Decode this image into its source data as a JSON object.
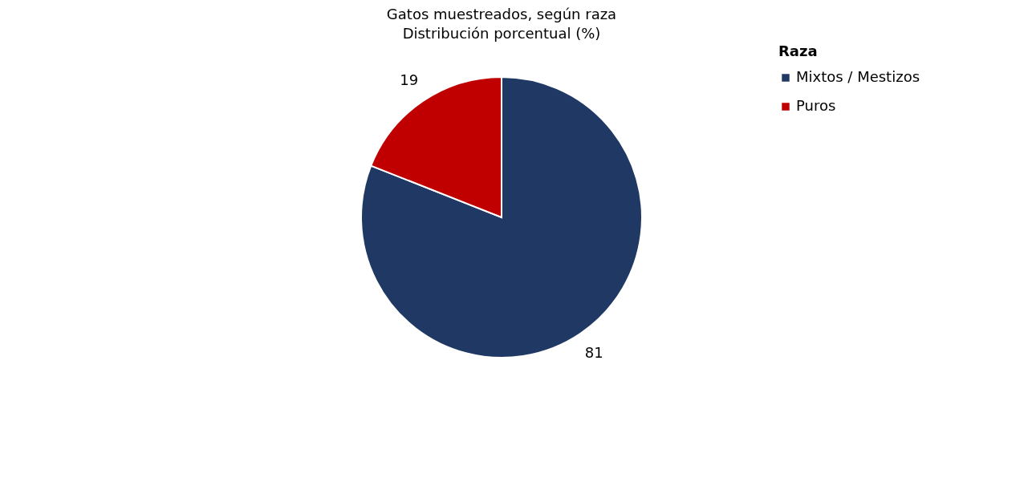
{
  "chart_data": {
    "type": "pie",
    "title": "Gatos muestreados, según raza",
    "subtitle": "Distribución porcentual (%)",
    "legend_title": "Raza",
    "categories": [
      "Mixtos / Mestizos",
      "Puros"
    ],
    "values": [
      81,
      19
    ],
    "colors": [
      "#203864",
      "#c00000"
    ],
    "data_labels": true,
    "legend": "right"
  }
}
